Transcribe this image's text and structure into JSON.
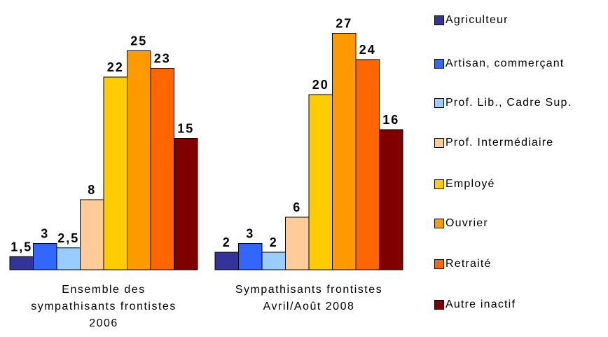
{
  "chart_data": {
    "type": "bar",
    "categories": [
      "Ensemble des sympathisants frontistes 2006",
      "Sympathisants frontistes Avril/Août 2008"
    ],
    "series": [
      {
        "name": "Agriculteur",
        "color": "#333399",
        "values": [
          1.5,
          2
        ],
        "value_labels": [
          "1,5",
          "2"
        ]
      },
      {
        "name": "Artisan, commerçant",
        "color": "#3366ff",
        "values": [
          3,
          3
        ]
      },
      {
        "name": "Prof. Lib., Cadre Sup.",
        "color": "#99ccff",
        "values": [
          2.5,
          2
        ],
        "value_labels": [
          "2,5",
          "2"
        ]
      },
      {
        "name": "Prof. Intermédiaire",
        "color": "#ffcc99",
        "values": [
          8,
          6
        ]
      },
      {
        "name": "Employé",
        "color": "#ffcc00",
        "values": [
          22,
          20
        ]
      },
      {
        "name": "Ouvrier",
        "color": "#ff9900",
        "values": [
          25,
          27
        ]
      },
      {
        "name": "Retraité",
        "color": "#ff6600",
        "values": [
          23,
          24
        ]
      },
      {
        "name": "Autre inactif",
        "color": "#800000",
        "values": [
          15,
          16
        ]
      }
    ],
    "ylim": [
      0,
      30
    ],
    "legend": "right"
  }
}
